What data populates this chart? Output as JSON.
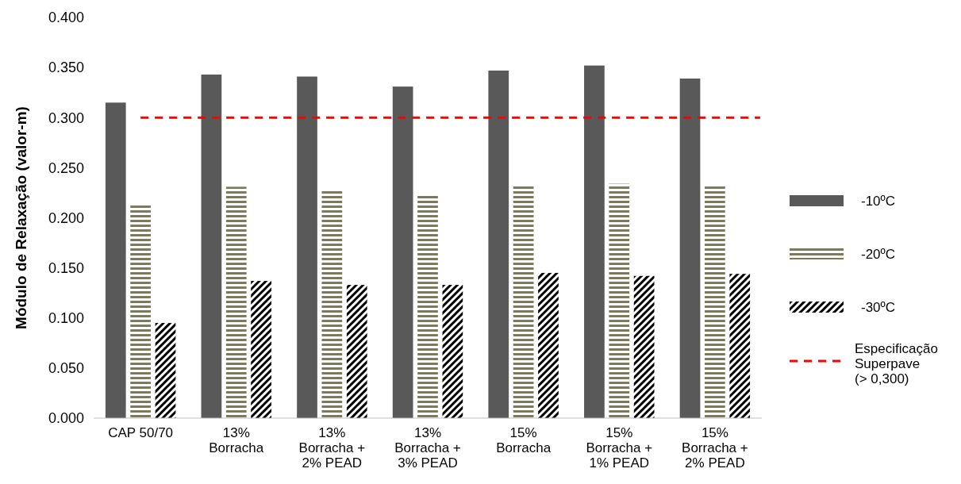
{
  "chart_data": {
    "type": "bar",
    "ylabel": "Módulo de Relaxação (valor-m)",
    "categories": [
      "CAP 50/70",
      "13% Borracha",
      "13% Borracha + 2% PEAD",
      "13% Borracha + 3% PEAD",
      "15% Borracha",
      "15% Borracha + 1% PEAD",
      "15% Borracha + 2% PEAD"
    ],
    "series": [
      {
        "name": "-10ºC",
        "color": "#595959",
        "values": [
          0.315,
          0.343,
          0.341,
          0.331,
          0.347,
          0.352,
          0.339
        ]
      },
      {
        "name": "-20ºC",
        "color": "#7f7a4f",
        "values": [
          0.214,
          0.231,
          0.228,
          0.223,
          0.233,
          0.234,
          0.233
        ]
      },
      {
        "name": "-30ºC",
        "color": "#000000",
        "values": [
          0.095,
          0.137,
          0.133,
          0.133,
          0.145,
          0.142,
          0.144
        ]
      }
    ],
    "ylim": [
      0,
      0.4
    ],
    "yticks": [
      {
        "value": 0,
        "label": "0.000"
      },
      {
        "value": 0.05,
        "label": "0.050"
      },
      {
        "value": 0.1,
        "label": "0.100"
      },
      {
        "value": 0.15,
        "label": "0.150"
      },
      {
        "value": 0.2,
        "label": "0.200"
      },
      {
        "value": 0.25,
        "label": "0.250"
      },
      {
        "value": 0.3,
        "label": "0.300"
      },
      {
        "value": 0.35,
        "label": "0.350"
      },
      {
        "value": 0.4,
        "label": "0.400"
      }
    ],
    "ref_lines": [
      {
        "axis": "y",
        "value": 0.3,
        "label": "Especificação Superpave (> 0,300)",
        "color": "#ff0000",
        "line_style": "dashed"
      }
    ],
    "legend": "right",
    "grid": false
  }
}
